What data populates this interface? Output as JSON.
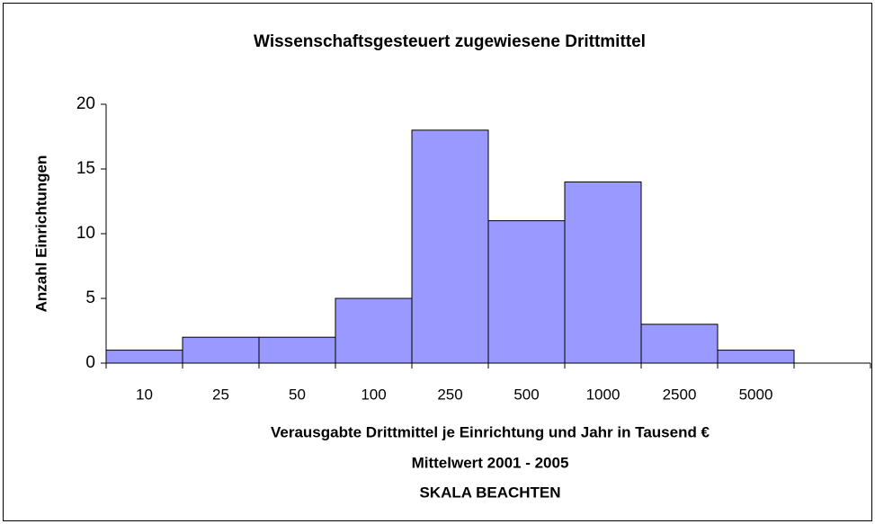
{
  "chart_data": {
    "type": "bar",
    "title": "Wissenschaftsgesteuert zugewiesene Drittmittel",
    "ylabel": "Anzahl Einrichtungen",
    "xlabel": [
      "Verausgabte Drittmittel je Einrichtung und Jahr in Tausend €",
      "Mittelwert 2001 - 2005",
      "SKALA BEACHTEN"
    ],
    "categories": [
      "10",
      "25",
      "50",
      "100",
      "250",
      "500",
      "1000",
      "2500",
      "5000",
      null
    ],
    "values": [
      1,
      2,
      2,
      5,
      18,
      11,
      14,
      3,
      1,
      null
    ],
    "color": "#9999ff",
    "ylim": [
      0,
      20
    ],
    "yticks": [
      0,
      5,
      10,
      15,
      20
    ],
    "grid": false
  }
}
